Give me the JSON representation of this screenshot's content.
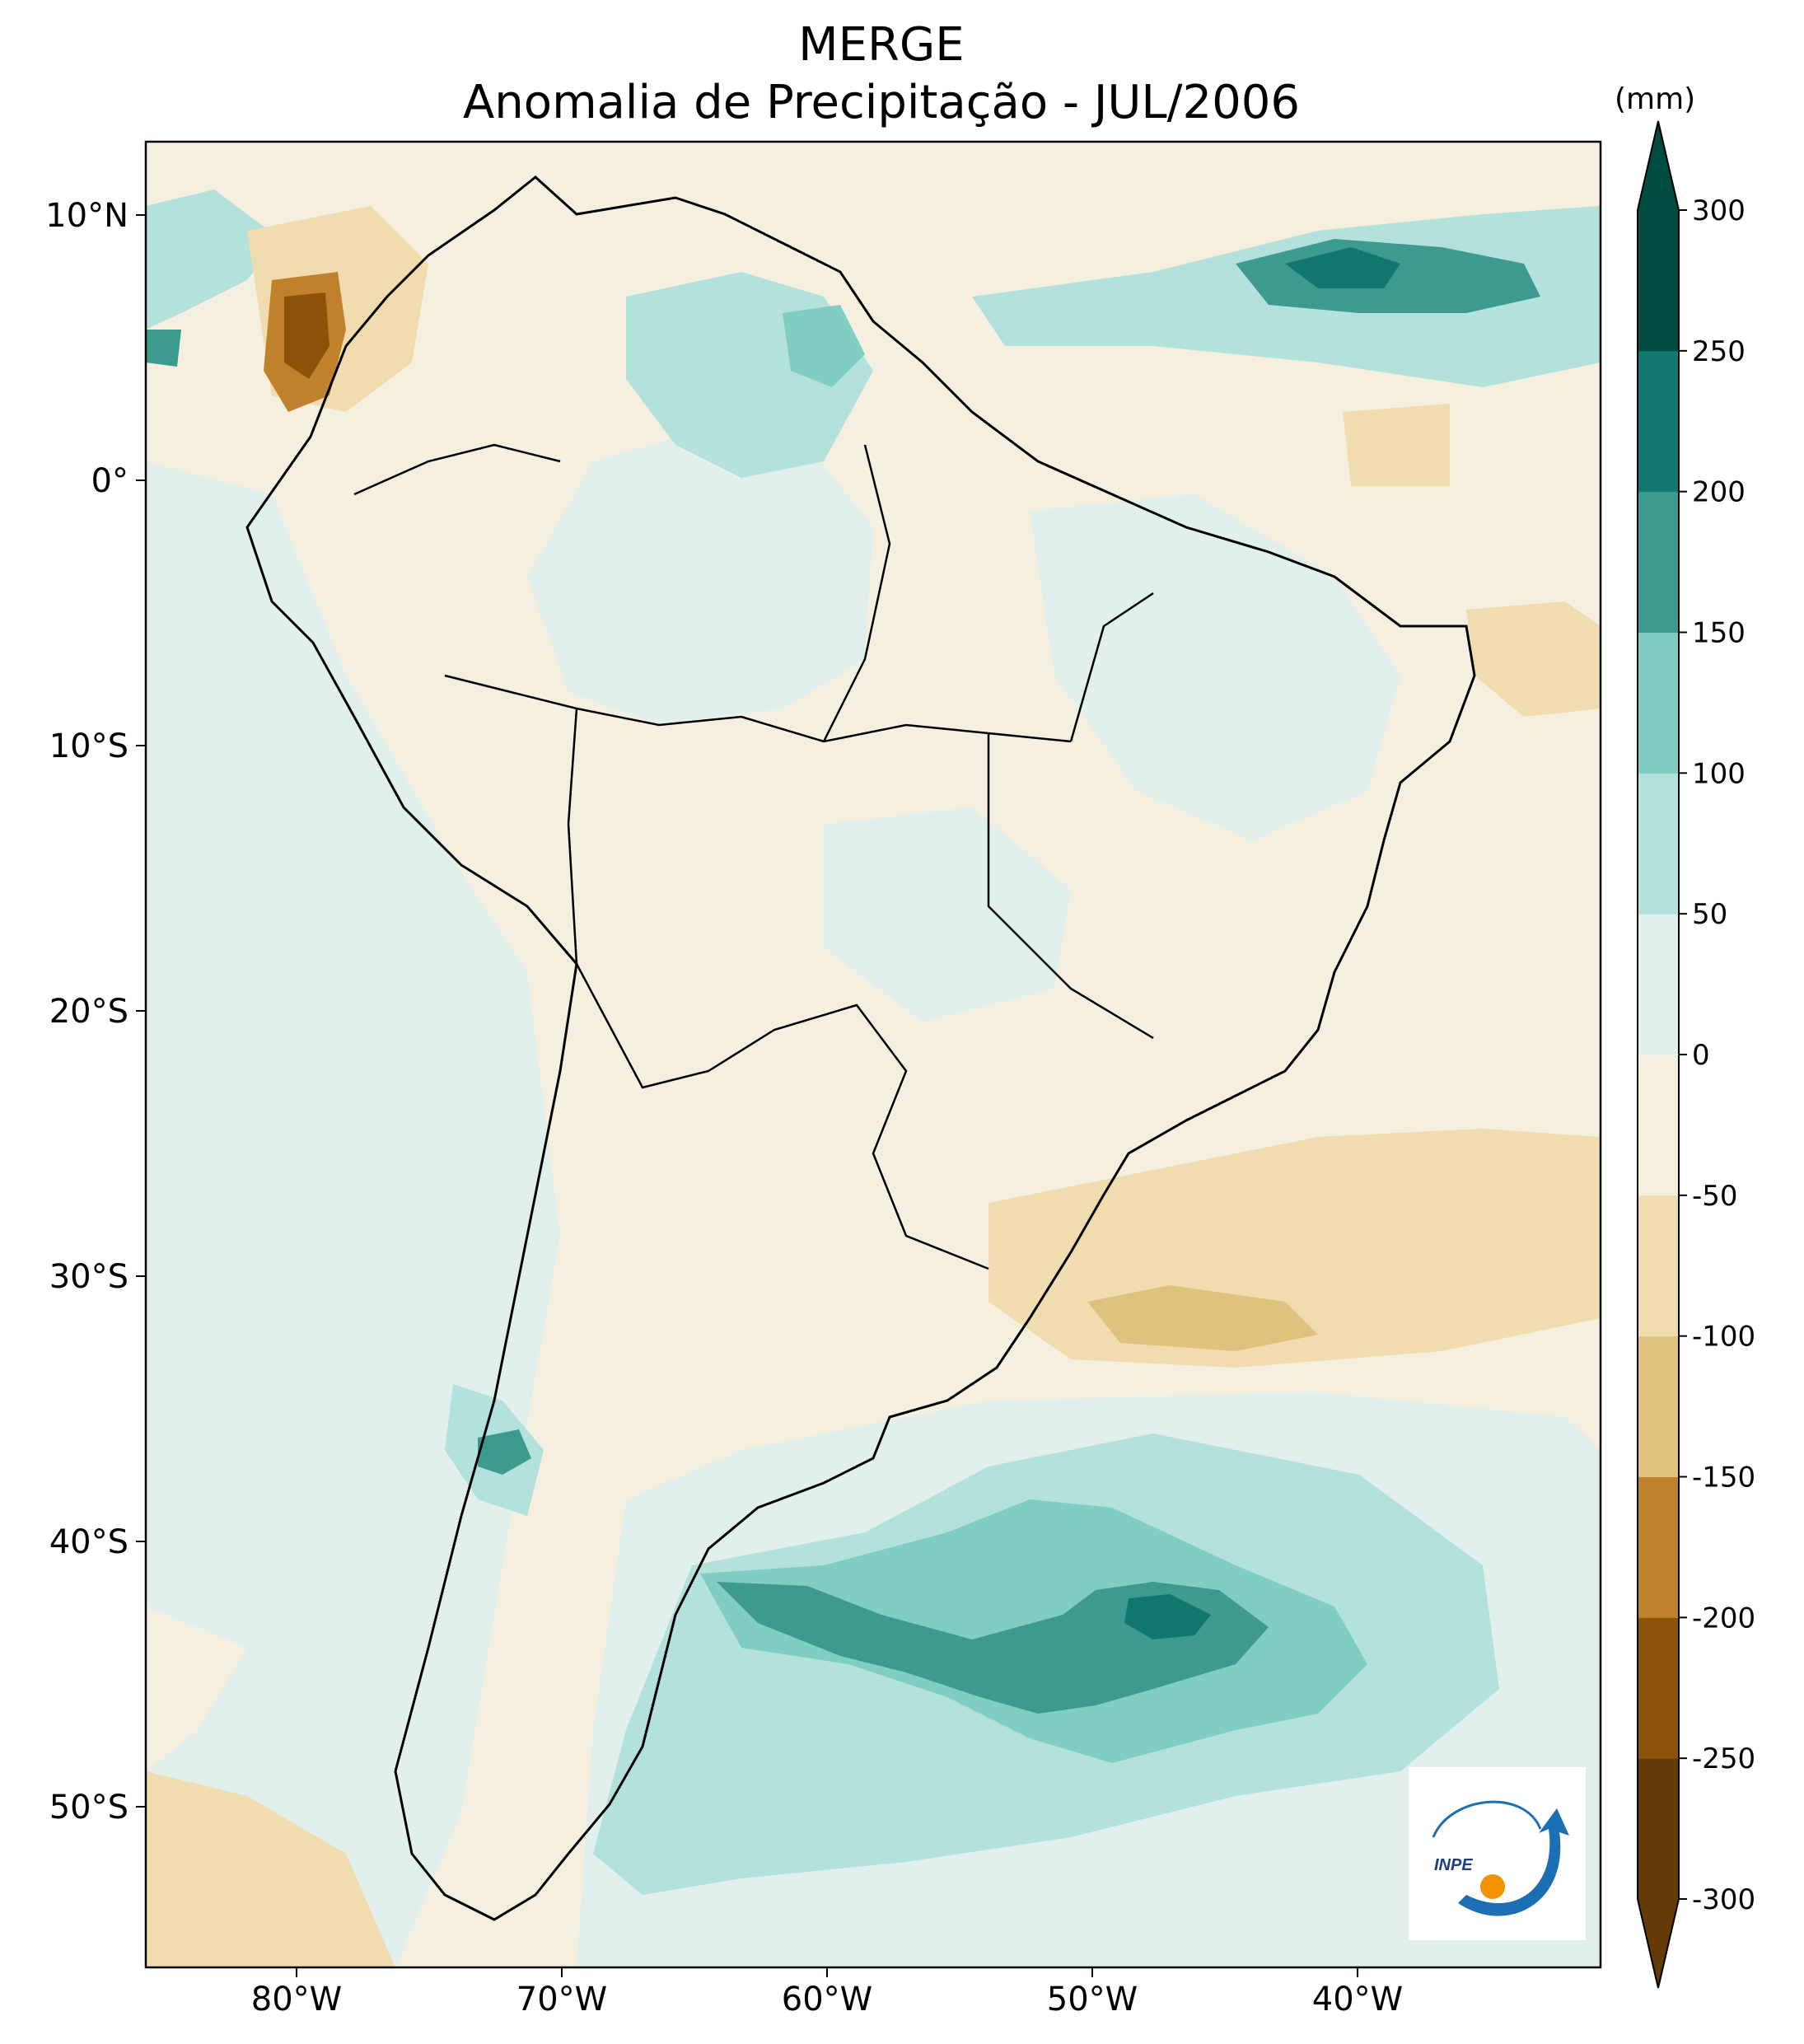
{
  "title": "MERGE",
  "subtitle": "Anomalia de Precipitação - JUL/2006",
  "units": "(mm)",
  "lat_labels": [
    "10°N",
    "0°",
    "10°S",
    "20°S",
    "30°S",
    "40°S",
    "50°S"
  ],
  "lon_labels": [
    "80°W",
    "70°W",
    "60°W",
    "50°W",
    "40°W"
  ],
  "colorbar": {
    "levels": [
      -300,
      -250,
      -200,
      -150,
      -100,
      -50,
      0,
      50,
      100,
      150,
      200,
      250,
      300
    ],
    "labels": [
      "-300",
      "-250",
      "-200",
      "-150",
      "-100",
      "-50",
      "0",
      "50",
      "100",
      "150",
      "200",
      "250",
      "300"
    ],
    "colors": [
      "#653a07",
      "#8c540a",
      "#bf812c",
      "#dfc27d",
      "#f0dcaf",
      "#f5efe0",
      "#e1f0ec",
      "#b3e1db",
      "#80cdc1",
      "#3d9a8f",
      "#117870",
      "#004c40"
    ]
  },
  "logo_text": "INPE",
  "colors": {
    "ocean_base": "#f5efe0",
    "border": "#000000"
  }
}
